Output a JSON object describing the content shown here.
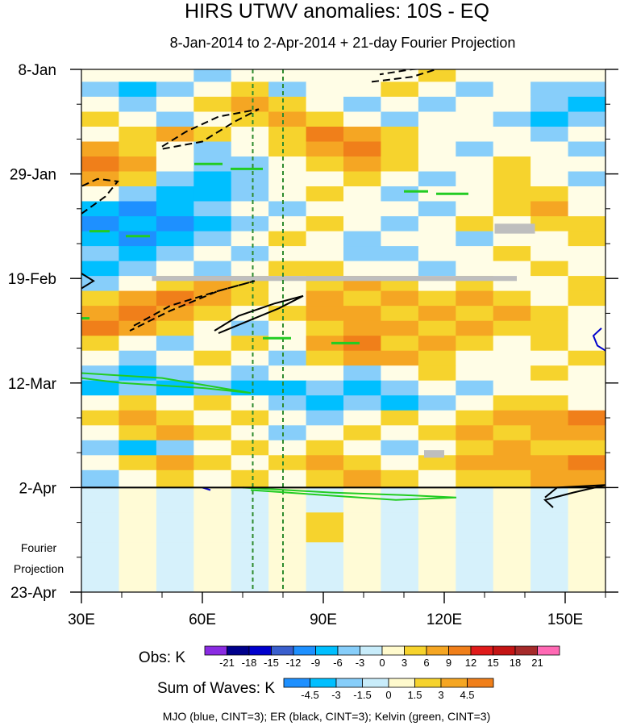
{
  "chart_data": {
    "type": "heatmap",
    "title": "HIRS UTWV anomalies: 10S - EQ",
    "subtitle": "8-Jan-2014 to 2-Apr-2014 + 21-day Fourier Projection",
    "x_axis": {
      "range": [
        30,
        160
      ],
      "units": "deg longitude",
      "ticks": [
        {
          "value": 30,
          "label": "30E"
        },
        {
          "value": 60,
          "label": "60E"
        },
        {
          "value": 90,
          "label": "90E"
        },
        {
          "value": 120,
          "label": "120E"
        },
        {
          "value": 150,
          "label": "150E"
        }
      ],
      "minor_step": 10
    },
    "y_axis": {
      "range_days": [
        0,
        105
      ],
      "ticks": [
        {
          "day": 0,
          "label": "8-Jan"
        },
        {
          "day": 21,
          "label": "29-Jan"
        },
        {
          "day": 42,
          "label": "19-Feb"
        },
        {
          "day": 63,
          "label": "12-Mar"
        },
        {
          "day": 84,
          "label": "2-Apr"
        },
        {
          "day": 105,
          "label": "23-Apr"
        }
      ],
      "minor_step_days": 7,
      "projection_label": [
        "Fourier",
        "Projection"
      ],
      "observation_end_day": 84
    },
    "reference_longitudes": [
      72.5,
      80
    ],
    "obs_colorbar": {
      "label": "Obs: K",
      "levels": [
        "-21",
        "-18",
        "-15",
        "-12",
        "-9",
        "-6",
        "-3",
        "0",
        "3",
        "6",
        "9",
        "12",
        "15",
        "18",
        "21"
      ],
      "colors": [
        "#8a2be2",
        "#00008b",
        "#0000cd",
        "#3a5fcd",
        "#1e90ff",
        "#00bfff",
        "#87cefa",
        "#c8ecfa",
        "#fffacd",
        "#f6d32d",
        "#f5a623",
        "#f07f1a",
        "#e01b1b",
        "#c41414",
        "#a52a2a",
        "#ff69b4"
      ]
    },
    "waves_colorbar": {
      "label": "Sum of Waves: K",
      "levels": [
        "-4.5",
        "-3",
        "-1.5",
        "0",
        "1.5",
        "3",
        "4.5"
      ],
      "colors": [
        "#1e90ff",
        "#00bfff",
        "#87cefa",
        "#c8ecfa",
        "#fffacd",
        "#f6d32d",
        "#f5a623",
        "#f07f1a"
      ]
    },
    "series": [
      {
        "name": "MJO",
        "color": "#0000cc",
        "cint": 3
      },
      {
        "name": "ER",
        "color": "#000000",
        "cint": 3
      },
      {
        "name": "Kelvin",
        "color": "#22cc22",
        "cint": 3
      }
    ],
    "legend_note": "MJO (blue, CINT=3); ER (black, CINT=3); Kelvin (green, CINT=3)",
    "missing_data_color": "#bebebe",
    "bands": [
      {
        "day": 1,
        "row": [
          0,
          0,
          0,
          -1,
          0,
          0,
          0,
          0,
          0,
          1,
          0,
          0,
          0,
          0
        ]
      },
      {
        "day": 4,
        "row": [
          -1,
          -2,
          -1,
          0,
          1,
          -1,
          0,
          0,
          1,
          0,
          -1,
          0,
          -1,
          -1
        ]
      },
      {
        "day": 7,
        "row": [
          0,
          -1,
          0,
          1,
          2,
          1,
          0,
          -1,
          0,
          -1,
          0,
          0,
          -1,
          -2
        ]
      },
      {
        "day": 10,
        "row": [
          1,
          0,
          -1,
          0,
          1,
          2,
          1,
          0,
          -1,
          0,
          0,
          -1,
          -2,
          -1
        ]
      },
      {
        "day": 13,
        "row": [
          0,
          1,
          2,
          1,
          0,
          1,
          3,
          2,
          1,
          0,
          0,
          0,
          -1,
          0
        ]
      },
      {
        "day": 16,
        "row": [
          2,
          1,
          0,
          -1,
          0,
          1,
          2,
          3,
          1,
          0,
          -1,
          0,
          0,
          -1
        ]
      },
      {
        "day": 19,
        "row": [
          3,
          2,
          0,
          -1,
          -1,
          0,
          1,
          2,
          1,
          0,
          0,
          1,
          0,
          0
        ]
      },
      {
        "day": 22,
        "row": [
          2,
          1,
          -1,
          -2,
          -1,
          0,
          0,
          1,
          0,
          -1,
          0,
          1,
          0,
          -1
        ]
      },
      {
        "day": 25,
        "row": [
          0,
          -1,
          -2,
          -2,
          -1,
          0,
          1,
          0,
          -1,
          0,
          0,
          1,
          1,
          0
        ]
      },
      {
        "day": 28,
        "row": [
          -2,
          -3,
          -2,
          -1,
          0,
          -1,
          0,
          0,
          0,
          -1,
          0,
          1,
          2,
          0
        ]
      },
      {
        "day": 31,
        "row": [
          -3,
          -2,
          -3,
          -2,
          -1,
          0,
          1,
          0,
          -1,
          0,
          1,
          0,
          1,
          1
        ]
      },
      {
        "day": 34,
        "row": [
          -2,
          -3,
          -2,
          -1,
          0,
          1,
          0,
          -1,
          0,
          0,
          -1,
          0,
          0,
          1
        ]
      },
      {
        "day": 37,
        "row": [
          -1,
          -2,
          -1,
          0,
          -1,
          0,
          0,
          -1,
          -1,
          0,
          0,
          1,
          0,
          0
        ]
      },
      {
        "day": 40,
        "row": [
          -2,
          -1,
          0,
          -1,
          0,
          1,
          1,
          0,
          0,
          -1,
          0,
          0,
          1,
          0
        ]
      },
      {
        "day": 43,
        "row": [
          -1,
          0,
          1,
          2,
          1,
          0,
          1,
          2,
          1,
          0,
          1,
          0,
          0,
          1
        ]
      },
      {
        "day": 46,
        "row": [
          1,
          2,
          3,
          2,
          1,
          0,
          2,
          1,
          2,
          1,
          2,
          1,
          0,
          1
        ]
      },
      {
        "day": 49,
        "row": [
          2,
          3,
          2,
          1,
          0,
          1,
          2,
          2,
          1,
          2,
          1,
          2,
          1,
          0
        ]
      },
      {
        "day": 52,
        "row": [
          3,
          2,
          1,
          0,
          -1,
          0,
          1,
          2,
          2,
          1,
          2,
          1,
          1,
          0
        ]
      },
      {
        "day": 55,
        "row": [
          1,
          0,
          -1,
          0,
          1,
          0,
          2,
          3,
          1,
          2,
          1,
          0,
          1,
          0
        ]
      },
      {
        "day": 58,
        "row": [
          0,
          -1,
          0,
          1,
          0,
          -1,
          1,
          2,
          2,
          1,
          0,
          0,
          0,
          1
        ]
      },
      {
        "day": 61,
        "row": [
          -1,
          -2,
          -1,
          0,
          -1,
          0,
          0,
          -1,
          0,
          1,
          0,
          0,
          1,
          0
        ]
      },
      {
        "day": 64,
        "row": [
          -2,
          -1,
          -2,
          -1,
          -2,
          -2,
          -1,
          -2,
          -1,
          0,
          -1,
          0,
          0,
          0
        ]
      },
      {
        "day": 67,
        "row": [
          0,
          1,
          0,
          1,
          0,
          -1,
          -2,
          -1,
          -2,
          -1,
          0,
          1,
          1,
          0
        ]
      },
      {
        "day": 70,
        "row": [
          1,
          2,
          1,
          0,
          1,
          0,
          -1,
          0,
          1,
          0,
          1,
          2,
          2,
          3
        ]
      },
      {
        "day": 73,
        "row": [
          0,
          1,
          2,
          1,
          0,
          -1,
          0,
          1,
          0,
          1,
          2,
          1,
          2,
          2
        ]
      },
      {
        "day": 76,
        "row": [
          -1,
          -2,
          -1,
          0,
          1,
          0,
          1,
          0,
          -1,
          0,
          1,
          2,
          1,
          1
        ]
      },
      {
        "day": 79,
        "row": [
          0,
          1,
          2,
          1,
          0,
          1,
          2,
          1,
          0,
          1,
          2,
          2,
          2,
          3
        ]
      },
      {
        "day": 82,
        "row": [
          -1,
          0,
          1,
          0,
          1,
          0,
          1,
          2,
          1,
          0,
          1,
          1,
          2,
          2
        ]
      },
      {
        "day": 86,
        "row": [
          0,
          0,
          0,
          0,
          0,
          0,
          0,
          0,
          0,
          0,
          0,
          0,
          0,
          0
        ]
      },
      {
        "day": 92,
        "row": [
          0,
          0,
          0,
          0,
          0,
          0,
          1,
          0,
          0,
          0,
          0,
          0,
          0,
          0
        ]
      },
      {
        "day": 98,
        "row": [
          0,
          0,
          0,
          0,
          0,
          0,
          0,
          0,
          0,
          0,
          0,
          0,
          0,
          0
        ]
      }
    ],
    "missing_bars": [
      {
        "lon": [
          47.5,
          138
        ],
        "day": [
          41.5,
          42.5
        ]
      },
      {
        "lon": [
          132.5,
          142.5
        ],
        "day": [
          31,
          33
        ]
      },
      {
        "lon": [
          115,
          120
        ],
        "day": [
          76.5,
          78
        ]
      }
    ],
    "wave_contours": [
      {
        "wave": "ER",
        "style": "dashed",
        "points": [
          [
            50,
            15.5
          ],
          [
            56,
            12.5
          ],
          [
            64,
            9.5
          ],
          [
            74,
            8
          ],
          [
            68,
            10.5
          ],
          [
            60,
            14.5
          ],
          [
            50,
            16
          ]
        ]
      },
      {
        "wave": "ER",
        "style": "dashed",
        "points": [
          [
            30,
            29
          ],
          [
            36,
            25.5
          ],
          [
            39,
            22.5
          ],
          [
            34,
            22
          ],
          [
            30,
            23.5
          ]
        ]
      },
      {
        "wave": "ER",
        "style": "dashed",
        "points": [
          [
            102,
            2.5
          ],
          [
            112,
            1.5
          ],
          [
            120,
            -0.5
          ],
          [
            112,
            0
          ],
          [
            104,
            1
          ]
        ]
      },
      {
        "wave": "ER",
        "style": "dashed",
        "points": [
          [
            43,
            51.5
          ],
          [
            52,
            47.5
          ],
          [
            64,
            44.5
          ],
          [
            73,
            42.5
          ],
          [
            64,
            44.5
          ],
          [
            52,
            48.5
          ],
          [
            42,
            52.5
          ]
        ]
      },
      {
        "wave": "ER",
        "style": "solid",
        "points": [
          [
            63,
            52.5
          ],
          [
            69,
            49.5
          ],
          [
            78,
            47
          ],
          [
            85,
            45.5
          ],
          [
            79,
            48
          ],
          [
            70,
            51
          ],
          [
            64,
            53
          ]
        ]
      },
      {
        "wave": "ER",
        "style": "solid",
        "points": [
          [
            30,
            41
          ],
          [
            33,
            42.5
          ],
          [
            30,
            44
          ]
        ]
      },
      {
        "wave": "ER",
        "style": "solid",
        "points": [
          [
            145,
            86
          ],
          [
            148,
            84
          ],
          [
            160,
            83.5
          ],
          [
            152,
            85
          ],
          [
            145,
            86.5
          ],
          [
            147,
            88
          ]
        ]
      },
      {
        "wave": "Kelvin",
        "style": "solid",
        "points": [
          [
            30,
            61
          ],
          [
            50,
            62
          ],
          [
            72,
            65
          ],
          [
            60,
            64
          ],
          [
            40,
            63
          ],
          [
            30,
            62
          ]
        ]
      },
      {
        "wave": "Kelvin",
        "style": "solid",
        "points": [
          [
            70,
            84
          ],
          [
            92,
            85
          ],
          [
            110,
            85.5
          ],
          [
            123,
            86
          ],
          [
            108,
            86.5
          ],
          [
            90,
            85.5
          ],
          [
            72,
            84.5
          ]
        ]
      },
      {
        "wave": "MJO",
        "style": "solid",
        "points": [
          [
            159,
            52
          ],
          [
            157,
            53.5
          ],
          [
            158,
            55.5
          ],
          [
            160,
            56.5
          ]
        ]
      },
      {
        "wave": "MJO",
        "style": "solid",
        "points": [
          [
            60,
            84
          ],
          [
            62,
            84.5
          ]
        ]
      }
    ],
    "wave_segments": [
      {
        "wave": "Kelvin",
        "lon": [
          58,
          65
        ],
        "day": 19
      },
      {
        "wave": "Kelvin",
        "lon": [
          67,
          75
        ],
        "day": 20
      },
      {
        "wave": "Kelvin",
        "lon": [
          110,
          116
        ],
        "day": 24.5
      },
      {
        "wave": "Kelvin",
        "lon": [
          118,
          126
        ],
        "day": 25
      },
      {
        "wave": "Kelvin",
        "lon": [
          32,
          37
        ],
        "day": 32.5
      },
      {
        "wave": "Kelvin",
        "lon": [
          41,
          47
        ],
        "day": 33.5
      },
      {
        "wave": "Kelvin",
        "lon": [
          75,
          82
        ],
        "day": 54
      },
      {
        "wave": "Kelvin",
        "lon": [
          92,
          99
        ],
        "day": 55
      },
      {
        "wave": "Kelvin",
        "lon": [
          30,
          32
        ],
        "day": 50
      }
    ]
  }
}
